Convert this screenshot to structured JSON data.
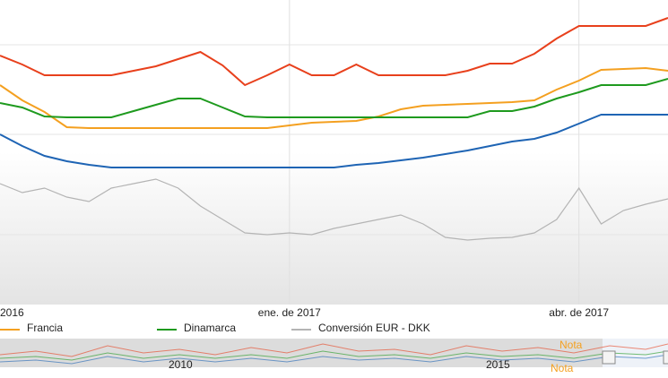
{
  "chart_data": {
    "type": "line",
    "categories": [
      "2016",
      null,
      null,
      null,
      null,
      null,
      null,
      null,
      null,
      null,
      null,
      null,
      null,
      "ene. de 2017",
      null,
      null,
      null,
      null,
      null,
      null,
      null,
      null,
      null,
      null,
      null,
      null,
      "abr. de 2017",
      null,
      null,
      null,
      null
    ],
    "ylim": [
      0,
      340
    ],
    "series": [
      {
        "color": "#e8401c",
        "values": [
          278,
          268,
          256,
          256,
          256,
          256,
          261,
          266,
          274,
          282,
          267,
          245,
          256,
          268,
          256,
          256,
          268,
          256,
          256,
          256,
          256,
          261,
          269,
          269,
          280,
          297,
          311,
          311,
          311,
          311,
          320
        ]
      },
      {
        "name": "Francia",
        "color": "#f4a020",
        "values": [
          245,
          228,
          215,
          198,
          197,
          197,
          197,
          197,
          197,
          197,
          197,
          197,
          197,
          200,
          203,
          204,
          205,
          210,
          218,
          222,
          223,
          224,
          225,
          226,
          228,
          240,
          250,
          262,
          263,
          264,
          261
        ]
      },
      {
        "name": "Dinamarca",
        "color": "#1e9a1e",
        "values": [
          225,
          220,
          210,
          209,
          209,
          209,
          216,
          223,
          230,
          230,
          220,
          210,
          209,
          209,
          209,
          209,
          209,
          209,
          209,
          209,
          209,
          209,
          216,
          216,
          221,
          230,
          237,
          245,
          245,
          245,
          252
        ]
      },
      {
        "color": "#1e64b4",
        "values": [
          190,
          177,
          166,
          160,
          156,
          153,
          153,
          153,
          153,
          153,
          153,
          153,
          153,
          153,
          153,
          153,
          156,
          158,
          161,
          164,
          168,
          172,
          177,
          182,
          185,
          192,
          202,
          212,
          212,
          212,
          212
        ]
      },
      {
        "name": "Conversión EUR - DKK",
        "color": "#b4b4b4",
        "values": [
          135,
          125,
          130,
          120,
          115,
          130,
          135,
          140,
          130,
          110,
          95,
          80,
          78,
          80,
          78,
          85,
          90,
          95,
          100,
          90,
          75,
          72,
          74,
          75,
          80,
          95,
          130,
          90,
          105,
          112,
          118
        ]
      }
    ],
    "navigator": {
      "labels": [
        "2010",
        "2015"
      ],
      "notes": [
        "Nota",
        "Nota"
      ]
    }
  }
}
